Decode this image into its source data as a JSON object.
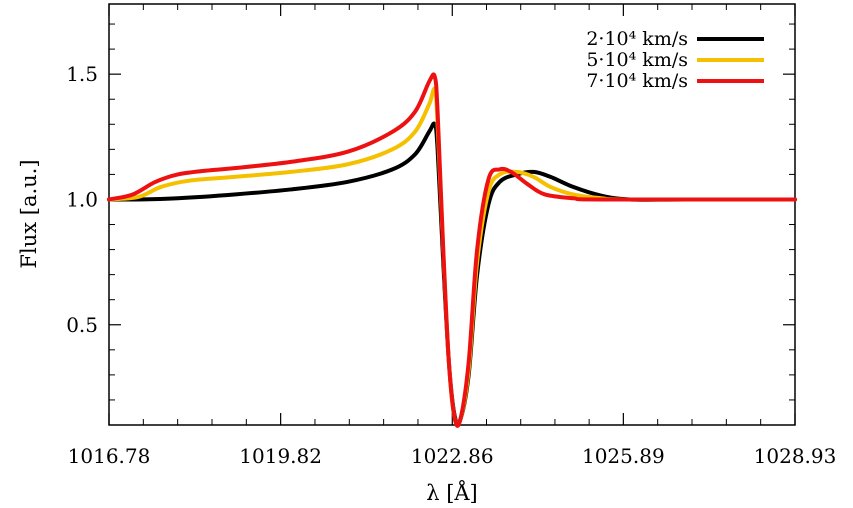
{
  "chart_data": {
    "type": "line",
    "xlabel": "λ [Å]",
    "ylabel": "Flux [a.u.]",
    "xlim": [
      1016.78,
      1028.93
    ],
    "ylim": [
      0.1,
      1.78
    ],
    "x_ticks": [
      1016.78,
      1019.82,
      1022.86,
      1025.89,
      1028.93
    ],
    "x_tick_labels": [
      "1016.78",
      "1019.82",
      "1022.86",
      "1025.89",
      "1028.93"
    ],
    "y_ticks": [
      0.5,
      1.0,
      1.5
    ],
    "y_tick_labels": [
      "0.5",
      "1.0",
      "1.5"
    ],
    "grid": false,
    "legend_position": "top-right",
    "series": [
      {
        "name": "2·10⁴ km/s",
        "color": "#000000",
        "x": [
          1016.78,
          1017.3,
          1018.0,
          1019.0,
          1020.0,
          1021.0,
          1021.8,
          1022.2,
          1022.45,
          1022.55,
          1022.6,
          1022.7,
          1022.8,
          1022.9,
          1023.0,
          1023.15,
          1023.3,
          1023.5,
          1023.7,
          1024.0,
          1024.3,
          1024.6,
          1025.0,
          1025.5,
          1026.0,
          1027.0,
          1028.93
        ],
        "y": [
          1.0,
          1.0,
          1.005,
          1.02,
          1.04,
          1.07,
          1.12,
          1.18,
          1.27,
          1.3,
          1.2,
          0.75,
          0.35,
          0.14,
          0.12,
          0.3,
          0.7,
          0.98,
          1.07,
          1.1,
          1.11,
          1.09,
          1.05,
          1.015,
          1.0,
          1.0,
          1.0
        ]
      },
      {
        "name": "5·10⁴ km/s",
        "color": "#f5c000",
        "x": [
          1016.78,
          1017.3,
          1017.7,
          1018.2,
          1019.0,
          1020.0,
          1021.0,
          1021.8,
          1022.2,
          1022.45,
          1022.55,
          1022.6,
          1022.7,
          1022.8,
          1022.9,
          1023.0,
          1023.15,
          1023.3,
          1023.5,
          1023.7,
          1024.0,
          1024.3,
          1024.6,
          1025.0,
          1025.5,
          1026.0,
          1028.93
        ],
        "y": [
          1.0,
          1.01,
          1.05,
          1.075,
          1.09,
          1.11,
          1.14,
          1.2,
          1.27,
          1.38,
          1.44,
          1.3,
          0.8,
          0.35,
          0.13,
          0.12,
          0.32,
          0.75,
          1.03,
          1.1,
          1.11,
          1.09,
          1.05,
          1.02,
          1.005,
          1.0,
          1.0
        ]
      },
      {
        "name": "7·10⁴ km/s",
        "color": "#ee1111",
        "x": [
          1016.78,
          1017.2,
          1017.6,
          1018.0,
          1018.5,
          1019.0,
          1020.0,
          1021.0,
          1021.8,
          1022.2,
          1022.45,
          1022.55,
          1022.6,
          1022.7,
          1022.8,
          1022.9,
          1023.0,
          1023.15,
          1023.3,
          1023.5,
          1023.7,
          1023.9,
          1024.2,
          1024.5,
          1025.0,
          1025.5,
          1028.93
        ],
        "y": [
          1.0,
          1.02,
          1.07,
          1.1,
          1.115,
          1.125,
          1.15,
          1.19,
          1.27,
          1.35,
          1.47,
          1.49,
          1.35,
          0.8,
          0.35,
          0.13,
          0.12,
          0.35,
          0.8,
          1.08,
          1.12,
          1.11,
          1.06,
          1.02,
          1.005,
          1.0,
          1.0
        ]
      }
    ]
  }
}
